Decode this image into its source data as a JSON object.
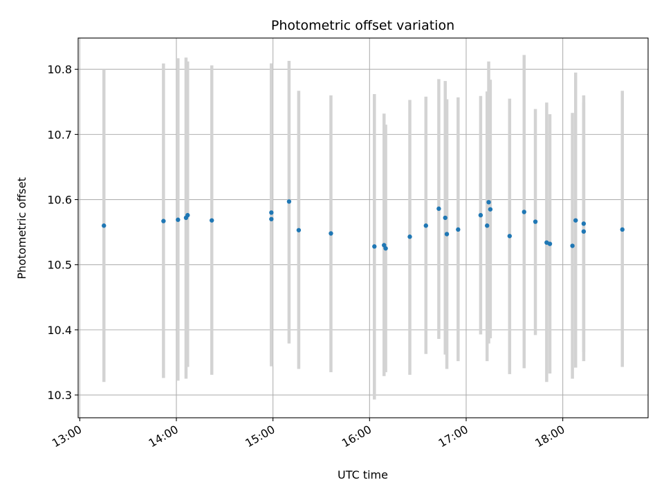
{
  "chart_data": {
    "type": "scatter",
    "title": "Photometric offset variation",
    "xlabel": "UTC time",
    "ylabel": "Photometric offset",
    "xlim": [
      "12:59",
      "18:53"
    ],
    "ylim": [
      10.265,
      10.848
    ],
    "grid": true,
    "x_ticks": [
      "13:00",
      "14:00",
      "15:00",
      "16:00",
      "17:00",
      "18:00"
    ],
    "y_ticks": [
      10.3,
      10.4,
      10.5,
      10.6,
      10.7,
      10.8
    ],
    "y_tick_labels": [
      "10.3",
      "10.4",
      "10.5",
      "10.6",
      "10.7",
      "10.8"
    ],
    "marker_color": "#1f77b4",
    "errorbar_color": "#d3d3d3",
    "points": [
      {
        "x": "13:15",
        "y": 10.56,
        "low": 10.32,
        "high": 10.8
      },
      {
        "x": "13:52",
        "y": 10.567,
        "low": 10.326,
        "high": 10.809
      },
      {
        "x": "14:01",
        "y": 10.569,
        "low": 10.322,
        "high": 10.817
      },
      {
        "x": "14:06",
        "y": 10.572,
        "low": 10.325,
        "high": 10.818
      },
      {
        "x": "14:07",
        "y": 10.576,
        "low": 10.343,
        "high": 10.812
      },
      {
        "x": "14:22",
        "y": 10.568,
        "low": 10.331,
        "high": 10.806
      },
      {
        "x": "14:59",
        "y": 10.58,
        "low": 10.35,
        "high": 10.809
      },
      {
        "x": "14:59",
        "y": 10.57,
        "low": 10.344,
        "high": 10.809
      },
      {
        "x": "15:10",
        "y": 10.597,
        "low": 10.379,
        "high": 10.813
      },
      {
        "x": "15:16",
        "y": 10.553,
        "low": 10.34,
        "high": 10.767
      },
      {
        "x": "15:36",
        "y": 10.548,
        "low": 10.335,
        "high": 10.76
      },
      {
        "x": "16:03",
        "y": 10.528,
        "low": 10.293,
        "high": 10.762
      },
      {
        "x": "16:09",
        "y": 10.53,
        "low": 10.329,
        "high": 10.732
      },
      {
        "x": "16:10",
        "y": 10.525,
        "low": 10.335,
        "high": 10.715
      },
      {
        "x": "16:25",
        "y": 10.543,
        "low": 10.331,
        "high": 10.753
      },
      {
        "x": "16:35",
        "y": 10.56,
        "low": 10.363,
        "high": 10.758
      },
      {
        "x": "16:43",
        "y": 10.586,
        "low": 10.386,
        "high": 10.785
      },
      {
        "x": "16:47",
        "y": 10.572,
        "low": 10.362,
        "high": 10.782
      },
      {
        "x": "16:48",
        "y": 10.547,
        "low": 10.34,
        "high": 10.754
      },
      {
        "x": "16:55",
        "y": 10.554,
        "low": 10.352,
        "high": 10.757
      },
      {
        "x": "17:09",
        "y": 10.576,
        "low": 10.393,
        "high": 10.759
      },
      {
        "x": "17:13",
        "y": 10.56,
        "low": 10.352,
        "high": 10.766
      },
      {
        "x": "17:14",
        "y": 10.596,
        "low": 10.379,
        "high": 10.812
      },
      {
        "x": "17:15",
        "y": 10.585,
        "low": 10.387,
        "high": 10.784
      },
      {
        "x": "17:27",
        "y": 10.544,
        "low": 10.332,
        "high": 10.755
      },
      {
        "x": "17:36",
        "y": 10.581,
        "low": 10.341,
        "high": 10.822
      },
      {
        "x": "17:43",
        "y": 10.566,
        "low": 10.392,
        "high": 10.739
      },
      {
        "x": "17:50",
        "y": 10.534,
        "low": 10.32,
        "high": 10.749
      },
      {
        "x": "17:52",
        "y": 10.532,
        "low": 10.333,
        "high": 10.731
      },
      {
        "x": "18:06",
        "y": 10.529,
        "low": 10.325,
        "high": 10.733
      },
      {
        "x": "18:08",
        "y": 10.568,
        "low": 10.342,
        "high": 10.795
      },
      {
        "x": "18:13",
        "y": 10.563,
        "low": 10.366,
        "high": 10.76
      },
      {
        "x": "18:13",
        "y": 10.551,
        "low": 10.352,
        "high": 10.749
      },
      {
        "x": "18:37",
        "y": 10.554,
        "low": 10.343,
        "high": 10.767
      }
    ]
  }
}
